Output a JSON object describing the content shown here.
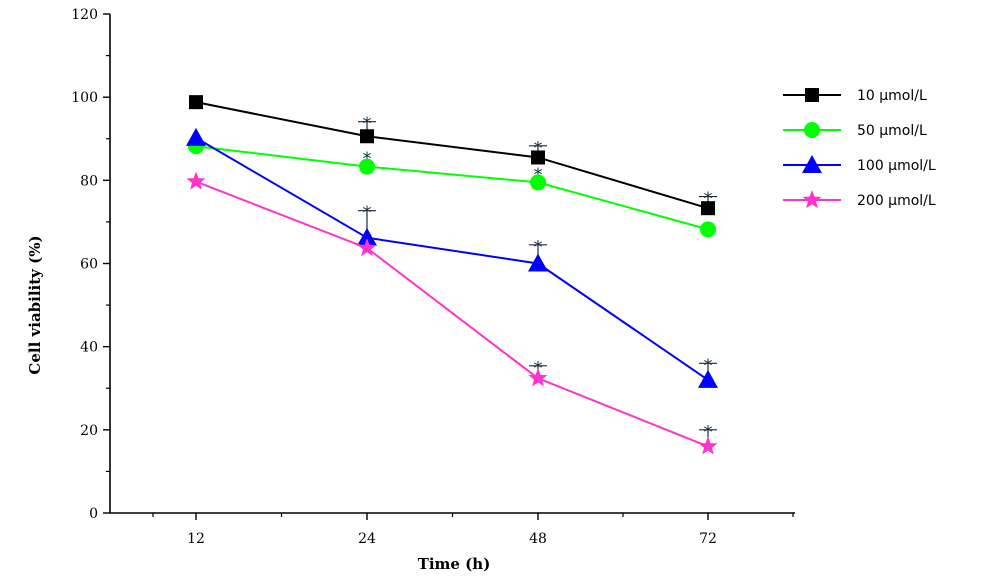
{
  "chart_data": {
    "type": "line",
    "xlabel": "Time (h)",
    "ylabel": "Cell viability (%)",
    "categories": [
      "12",
      "24",
      "48",
      "72"
    ],
    "ylim": [
      0,
      120
    ],
    "yticks": [
      0,
      20,
      40,
      60,
      80,
      100,
      120
    ],
    "grid": false,
    "legend_position": "right",
    "significance_marker": "*",
    "series": [
      {
        "name": "10 μmol/L",
        "color": "#000000",
        "marker": "square",
        "values": [
          98.8,
          90.6,
          85.5,
          73.3
        ],
        "errors": [
          0,
          3.5,
          2.8,
          2.8
        ],
        "significant": [
          false,
          true,
          true,
          true
        ]
      },
      {
        "name": "50 μmol/L",
        "color": "#00ff00",
        "marker": "circle",
        "values": [
          88.2,
          83.3,
          79.5,
          68.2
        ],
        "errors": [
          0,
          0,
          0,
          0
        ],
        "significant": [
          false,
          true,
          true,
          false
        ]
      },
      {
        "name": "100 μmol/L",
        "color": "#0000ff",
        "marker": "triangle",
        "values": [
          90.2,
          66.2,
          60.0,
          32.0
        ],
        "errors": [
          0,
          6.5,
          4.5,
          4.0
        ],
        "significant": [
          false,
          true,
          true,
          true
        ]
      },
      {
        "name": "200 μmol/L",
        "color": "#ff33cc",
        "marker": "star",
        "values": [
          79.7,
          63.7,
          32.4,
          16.0
        ],
        "errors": [
          0,
          0,
          3.0,
          4.0
        ],
        "significant": [
          false,
          false,
          true,
          true
        ]
      }
    ]
  }
}
